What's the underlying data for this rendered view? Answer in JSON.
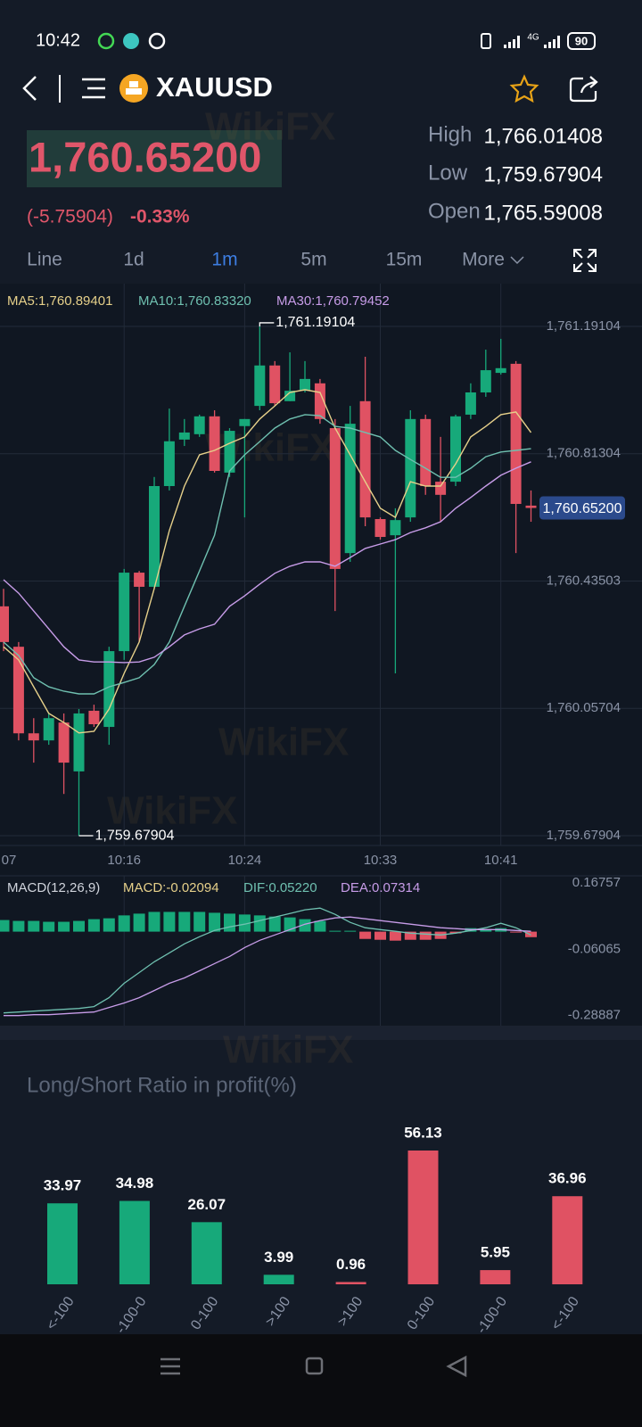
{
  "status_bar": {
    "time": "10:42",
    "network": "4G",
    "battery": "90"
  },
  "header": {
    "symbol": "XAUUSD"
  },
  "quote": {
    "price": "1,760.65200",
    "change": "(-5.75904)",
    "change_pct": "-0.33%",
    "high_label": "High",
    "high": "1,766.01408",
    "low_label": "Low",
    "low": "1,759.67904",
    "open_label": "Open",
    "open": "1,765.59008"
  },
  "tabs": {
    "items": [
      "Line",
      "1d",
      "1m",
      "5m",
      "15m",
      "More"
    ],
    "active": 2
  },
  "watermark": "WikiFX",
  "chart_data": [
    {
      "type": "candlestick",
      "up_color": "#17a97a",
      "down_color": "#e05263",
      "ylim": [
        1759.65,
        1761.318
      ],
      "yticks": [
        {
          "value": 1761.19104,
          "label": "1,761.19104"
        },
        {
          "value": 1760.81304,
          "label": "1,760.81304"
        },
        {
          "value": 1760.43503,
          "label": "1,760.43503"
        },
        {
          "value": 1760.05704,
          "label": "1,760.05704"
        },
        {
          "value": 1759.67904,
          "label": "1,759.67904"
        }
      ],
      "xticks": [
        {
          "value": -1,
          "label": "07"
        },
        {
          "value": 8,
          "label": "10:16"
        },
        {
          "value": 16,
          "label": "10:24"
        },
        {
          "value": 25,
          "label": "10:33"
        },
        {
          "value": 33,
          "label": "10:41"
        }
      ],
      "grid": true,
      "max_label": "1,761.19104",
      "min_label": "1,759.67904",
      "last_price_label": "1,760.65200",
      "ohlc": [
        [
          1760.36,
          1760.412,
          1760.227,
          1760.254
        ],
        [
          1760.24,
          1760.254,
          1759.962,
          1759.983
        ],
        [
          1759.983,
          1760.028,
          1759.896,
          1759.962
        ],
        [
          1759.962,
          1760.042,
          1759.949,
          1760.028
        ],
        [
          1760.015,
          1760.042,
          1759.803,
          1759.896
        ],
        [
          1759.87,
          1760.055,
          1759.67904,
          1760.042
        ],
        [
          1760.05,
          1760.068,
          1760.002,
          1760.01
        ],
        [
          1760.002,
          1760.24,
          1759.949,
          1760.227
        ],
        [
          1760.227,
          1760.471,
          1760.201,
          1760.46
        ],
        [
          1760.46,
          1760.465,
          1760.254,
          1760.418
        ],
        [
          1760.418,
          1760.744,
          1760.412,
          1760.717
        ],
        [
          1760.717,
          1760.947,
          1760.704,
          1760.85
        ],
        [
          1760.855,
          1760.916,
          1760.836,
          1760.876
        ],
        [
          1760.871,
          1760.929,
          1760.863,
          1760.924
        ],
        [
          1760.924,
          1760.942,
          1760.757,
          1760.762
        ],
        [
          1760.757,
          1760.889,
          1760.744,
          1760.881
        ],
        [
          1760.895,
          1760.916,
          1760.624,
          1760.916
        ],
        [
          1760.955,
          1761.19104,
          1760.942,
          1761.075
        ],
        [
          1761.075,
          1761.088,
          1760.955,
          1760.963
        ],
        [
          1760.969,
          1761.114,
          1760.969,
          1761.0
        ],
        [
          1761.0,
          1761.088,
          1760.995,
          1761.035
        ],
        [
          1761.022,
          1761.035,
          1760.902,
          1760.916
        ],
        [
          1760.889,
          1760.916,
          1760.346,
          1760.471
        ],
        [
          1760.518,
          1760.955,
          1760.492,
          1760.902
        ],
        [
          1760.969,
          1761.101,
          1760.598,
          1760.624
        ],
        [
          1760.619,
          1760.624,
          1760.558,
          1760.566
        ],
        [
          1760.571,
          1760.651,
          1760.161,
          1760.616
        ],
        [
          1760.624,
          1760.942,
          1760.611,
          1760.916
        ],
        [
          1760.916,
          1760.929,
          1760.691,
          1760.717
        ],
        [
          1760.73,
          1760.863,
          1760.611,
          1760.691
        ],
        [
          1760.73,
          1760.929,
          1760.717,
          1760.924
        ],
        [
          1760.929,
          1761.022,
          1760.916,
          1760.995
        ],
        [
          1760.995,
          1761.122,
          1760.982,
          1761.061
        ],
        [
          1761.053,
          1761.154,
          1761.048,
          1761.067
        ],
        [
          1761.08,
          1761.088,
          1760.518,
          1760.664
        ],
        [
          1760.659,
          1760.704,
          1760.611,
          1760.652
        ]
      ],
      "series": [
        {
          "name": "MA5:1,760.89401",
          "color": "#e6d08a",
          "values": [
            1760.24,
            1760.201,
            1760.121,
            1760.042,
            1760.015,
            1759.984,
            1759.989,
            1760.055,
            1760.161,
            1760.254,
            1760.413,
            1760.585,
            1760.717,
            1760.81,
            1760.823,
            1760.844,
            1760.863,
            1760.916,
            1760.955,
            1760.995,
            1761.003,
            1760.995,
            1760.889,
            1760.81,
            1760.73,
            1760.651,
            1760.624,
            1760.73,
            1760.717,
            1760.717,
            1760.783,
            1760.863,
            1760.894,
            1760.929,
            1760.937,
            1760.876
          ]
        },
        {
          "name": "MA10:1,760.83320",
          "color": "#6fc0b0",
          "values": [
            1760.254,
            1760.214,
            1760.148,
            1760.121,
            1760.108,
            1760.1,
            1760.1,
            1760.121,
            1760.134,
            1760.148,
            1760.187,
            1760.254,
            1760.36,
            1760.465,
            1760.571,
            1760.762,
            1760.81,
            1760.849,
            1760.889,
            1760.916,
            1760.929,
            1760.926,
            1760.894,
            1760.889,
            1760.876,
            1760.863,
            1760.823,
            1760.796,
            1760.77,
            1760.743,
            1760.743,
            1760.77,
            1760.804,
            1760.818,
            1760.823,
            1760.828
          ]
        },
        {
          "name": "MA30:1,760.79452",
          "color": "#c79ce8",
          "values": [
            1760.439,
            1760.399,
            1760.346,
            1760.293,
            1760.24,
            1760.201,
            1760.195,
            1760.195,
            1760.193,
            1760.195,
            1760.209,
            1760.24,
            1760.275,
            1760.293,
            1760.307,
            1760.36,
            1760.391,
            1760.426,
            1760.458,
            1760.479,
            1760.492,
            1760.492,
            1760.479,
            1760.505,
            1760.532,
            1760.545,
            1760.558,
            1760.579,
            1760.593,
            1760.611,
            1760.651,
            1760.683,
            1760.717,
            1760.749,
            1760.77,
            1760.789
          ]
        }
      ]
    },
    {
      "type": "macd",
      "indicator": "MACD(12,26,9)",
      "ylim": [
        -0.3236,
        0.1922
      ],
      "yticks": [
        0.16757,
        -0.06065,
        -0.28887
      ],
      "histogram": {
        "name": "MACD:-0.02094",
        "color": "#e6d08a",
        "up_color": "#17a97a",
        "down_color": "#e05263",
        "values": [
          0.04,
          0.037,
          0.037,
          0.034,
          0.034,
          0.037,
          0.043,
          0.046,
          0.056,
          0.062,
          0.068,
          0.068,
          0.068,
          0.068,
          0.065,
          0.062,
          0.059,
          0.056,
          0.052,
          0.049,
          0.043,
          0.037,
          0.003,
          0.003,
          -0.025,
          -0.028,
          -0.031,
          -0.028,
          -0.028,
          -0.025,
          -0.006,
          0.012,
          0.009,
          0.012,
          -0.003,
          -0.019
        ]
      },
      "series": [
        {
          "name": "DIF:0.05220",
          "color": "#6fc0b0",
          "values": [
            -0.2796,
            -0.2765,
            -0.2735,
            -0.2704,
            -0.2673,
            -0.2642,
            -0.258,
            -0.2272,
            -0.1778,
            -0.1408,
            -0.1038,
            -0.073,
            -0.0421,
            -0.0175,
            0.0041,
            0.0165,
            0.0257,
            0.0381,
            0.0504,
            0.0627,
            0.0751,
            0.0812,
            0.0597,
            0.0319,
            0.0134,
            0.0072,
            0.0011,
            -0.0051,
            -0.0082,
            -0.0113,
            -0.0051,
            0.0041,
            0.0134,
            0.0288,
            0.0134,
            -0.0113
          ]
        },
        {
          "name": "DEA:0.07314",
          "color": "#c79ce8",
          "values": [
            -0.2888,
            -0.2888,
            -0.2858,
            -0.2858,
            -0.2827,
            -0.2796,
            -0.2765,
            -0.2611,
            -0.2457,
            -0.2272,
            -0.2025,
            -0.1778,
            -0.1593,
            -0.1347,
            -0.11,
            -0.0853,
            -0.0545,
            -0.0298,
            -0.0113,
            0.0072,
            0.0257,
            0.0381,
            0.0473,
            0.0504,
            0.0442,
            0.0381,
            0.0319,
            0.0257,
            0.0196,
            0.0134,
            0.0103,
            0.0072,
            0.0072,
            0.0072,
            0.0041,
            0.0011
          ]
        }
      ]
    },
    {
      "type": "bar",
      "title": "Long/Short Ratio in profit(%)",
      "categories": [
        "<-100",
        "-100-0",
        "0-100",
        ">100",
        ">100",
        "0-100",
        "-100-0",
        "<-100"
      ],
      "values": [
        33.97,
        34.98,
        26.07,
        3.99,
        0.96,
        56.13,
        5.95,
        36.96
      ],
      "colors": [
        "#17a97a",
        "#17a97a",
        "#17a97a",
        "#17a97a",
        "#e05263",
        "#e05263",
        "#e05263",
        "#e05263"
      ]
    }
  ]
}
